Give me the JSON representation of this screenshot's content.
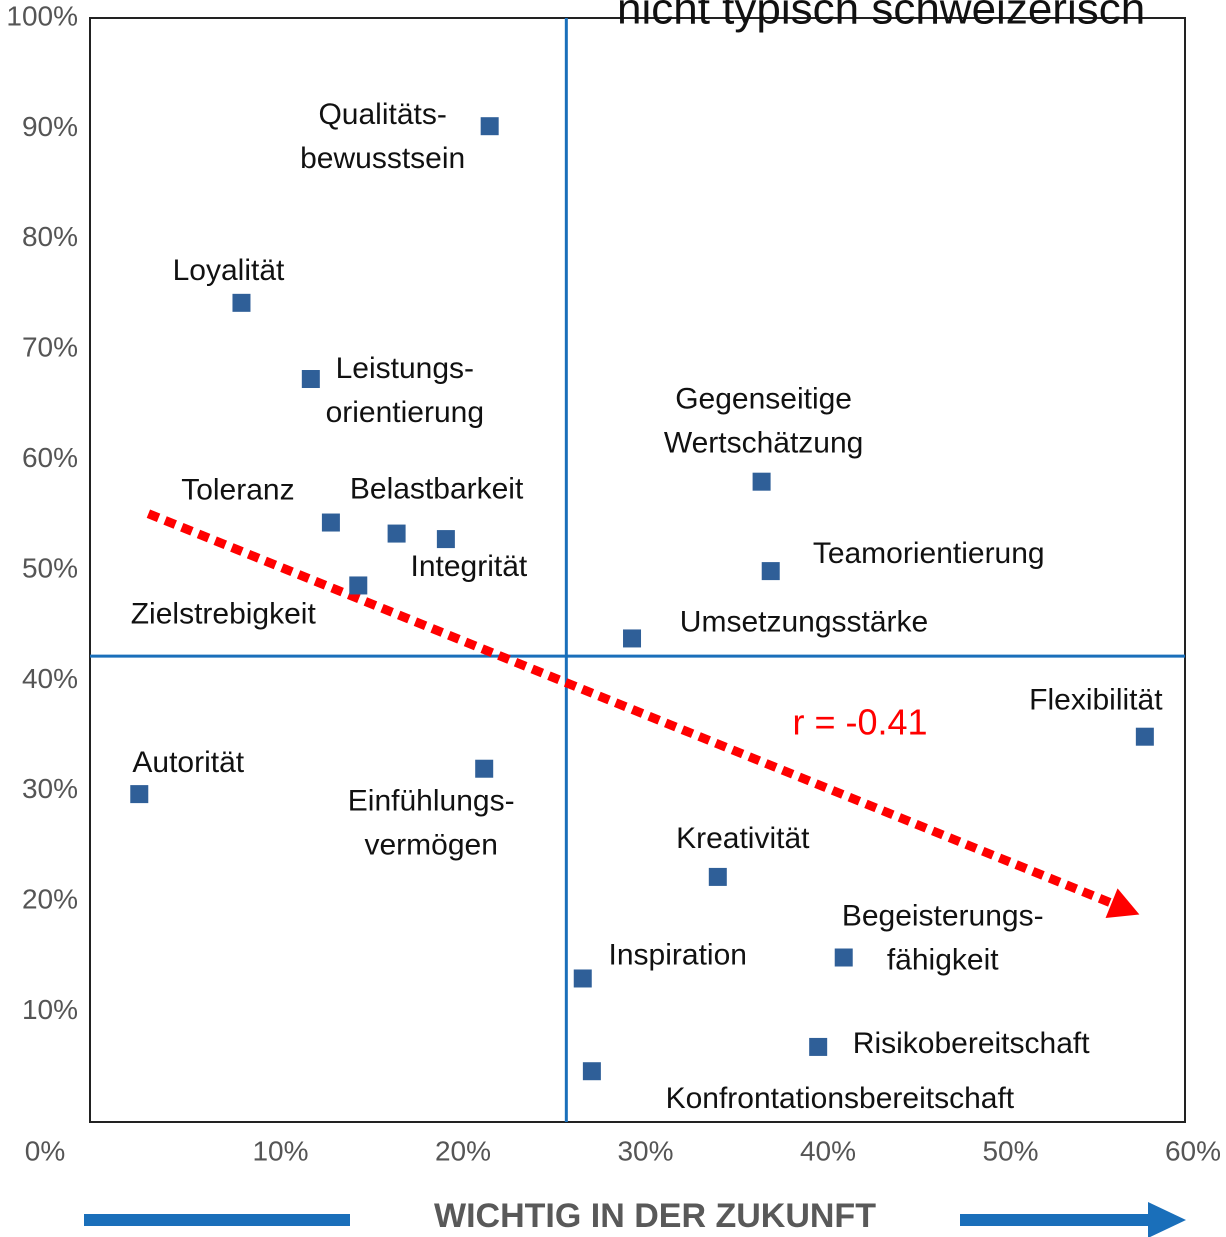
{
  "chart_data": {
    "type": "scatter",
    "title": "nicht typisch schweizerisch",
    "x_label": "WICHTIG IN DER ZUKUNFT",
    "annotation": "r = -0.41",
    "xlim": [
      0,
      60
    ],
    "ylim": [
      0,
      100
    ],
    "xticks": [
      {
        "value": 0,
        "label": "0%"
      },
      {
        "value": 10,
        "label": "10%"
      },
      {
        "value": 20,
        "label": "20%"
      },
      {
        "value": 30,
        "label": "30%"
      },
      {
        "value": 40,
        "label": "40%"
      },
      {
        "value": 50,
        "label": "50%"
      },
      {
        "value": 60,
        "label": "60%"
      }
    ],
    "yticks": [
      {
        "value": 10,
        "label": "10%"
      },
      {
        "value": 20,
        "label": "20%"
      },
      {
        "value": 30,
        "label": "30%"
      },
      {
        "value": 40,
        "label": "40%"
      },
      {
        "value": 50,
        "label": "50%"
      },
      {
        "value": 60,
        "label": "60%"
      },
      {
        "value": 70,
        "label": "70%"
      },
      {
        "value": 80,
        "label": "80%"
      },
      {
        "value": 90,
        "label": "90%"
      },
      {
        "value": 100,
        "label": "100%"
      }
    ],
    "color": "#2f5f98",
    "reference_lines": {
      "x": 26.1,
      "y": 42.2,
      "color": "#1a6fba"
    },
    "trend": {
      "x": [
        3.2,
        57.5
      ],
      "y": [
        55.1,
        18.8
      ],
      "color": "#ff0000"
    },
    "labels": [
      [
        "Qualitäts-",
        "bewusstsein"
      ],
      [
        "Loyalität"
      ],
      [
        "Leistungs-",
        "orientierung"
      ],
      [
        "Toleranz"
      ],
      [
        "Belastbarkeit"
      ],
      [
        "Integrität"
      ],
      [
        "Zielstrebigkeit"
      ],
      [
        "Gegenseitige",
        "Wertschätzung"
      ],
      [
        "Teamorientierung"
      ],
      [
        "Umsetzungsstärke"
      ],
      [
        "Flexibilität"
      ],
      [
        "Autorität"
      ],
      [
        "Einfühlungs-",
        "vermögen"
      ],
      [
        "Kreativität"
      ],
      [
        "Begeisterungs-",
        "fähigkeit"
      ],
      [
        "Inspiration"
      ],
      [
        "Risikobereitschaft"
      ],
      [
        "Konfrontationsbereitschaft"
      ]
    ],
    "x": [
      21.9,
      8.3,
      12.1,
      13.2,
      16.8,
      19.5,
      14.7,
      36.8,
      37.3,
      29.7,
      57.8,
      2.7,
      21.6,
      34.4,
      41.3,
      27.0,
      39.9,
      27.5
    ],
    "y": [
      90.2,
      74.2,
      67.3,
      54.3,
      53.3,
      52.8,
      48.6,
      58.0,
      49.9,
      43.8,
      34.9,
      29.7,
      32.0,
      22.2,
      14.9,
      13.0,
      6.8,
      4.6
    ]
  }
}
